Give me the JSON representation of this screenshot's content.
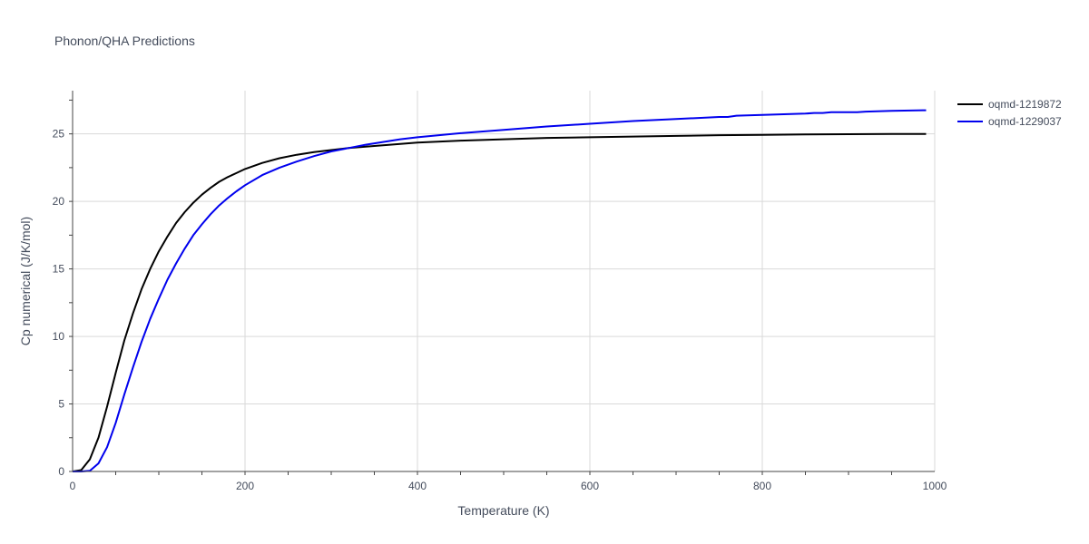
{
  "chart_data": {
    "type": "line",
    "title": "Phonon/QHA Predictions",
    "xlabel": "Temperature (K)",
    "ylabel": "Cp numerical (J/K/mol)",
    "xlim": [
      0,
      1000
    ],
    "ylim": [
      0,
      28.2
    ],
    "x_ticks": [
      0,
      200,
      400,
      600,
      800,
      1000
    ],
    "y_ticks": [
      0,
      5,
      10,
      15,
      20,
      25
    ],
    "grid": true,
    "legend_position": "top-right",
    "series": [
      {
        "name": "oqmd-1219872",
        "color": "#000000",
        "x": [
          0,
          10,
          20,
          30,
          40,
          50,
          60,
          70,
          80,
          90,
          100,
          110,
          120,
          130,
          140,
          150,
          160,
          170,
          180,
          190,
          200,
          220,
          240,
          260,
          280,
          300,
          320,
          340,
          360,
          380,
          400,
          450,
          500,
          550,
          600,
          650,
          700,
          750,
          800,
          850,
          900,
          950,
          990
        ],
        "y": [
          0,
          0.1,
          0.9,
          2.5,
          4.8,
          7.3,
          9.7,
          11.7,
          13.5,
          15.0,
          16.3,
          17.4,
          18.4,
          19.2,
          19.9,
          20.5,
          21.0,
          21.45,
          21.8,
          22.1,
          22.4,
          22.85,
          23.2,
          23.45,
          23.65,
          23.8,
          23.95,
          24.05,
          24.15,
          24.25,
          24.35,
          24.5,
          24.6,
          24.7,
          24.75,
          24.8,
          24.85,
          24.9,
          24.93,
          24.96,
          24.98,
          25.0,
          25.0
        ]
      },
      {
        "name": "oqmd-1229037",
        "color": "#0000ee",
        "x": [
          0,
          10,
          20,
          30,
          40,
          50,
          60,
          70,
          80,
          90,
          100,
          110,
          120,
          130,
          140,
          150,
          160,
          170,
          180,
          190,
          200,
          220,
          240,
          260,
          280,
          300,
          320,
          340,
          360,
          380,
          400,
          450,
          500,
          550,
          600,
          650,
          700,
          750,
          760,
          770,
          800,
          850,
          860,
          870,
          880,
          900,
          910,
          920,
          950,
          990
        ],
        "y": [
          0,
          0.0,
          0.05,
          0.6,
          1.8,
          3.6,
          5.7,
          7.7,
          9.6,
          11.3,
          12.8,
          14.2,
          15.4,
          16.5,
          17.5,
          18.3,
          19.05,
          19.7,
          20.25,
          20.75,
          21.2,
          21.95,
          22.5,
          22.95,
          23.35,
          23.7,
          23.95,
          24.2,
          24.4,
          24.6,
          24.75,
          25.05,
          25.3,
          25.55,
          25.75,
          25.95,
          26.1,
          26.25,
          26.25,
          26.35,
          26.4,
          26.5,
          26.55,
          26.55,
          26.6,
          26.6,
          26.6,
          26.65,
          26.7,
          26.75
        ]
      }
    ]
  }
}
